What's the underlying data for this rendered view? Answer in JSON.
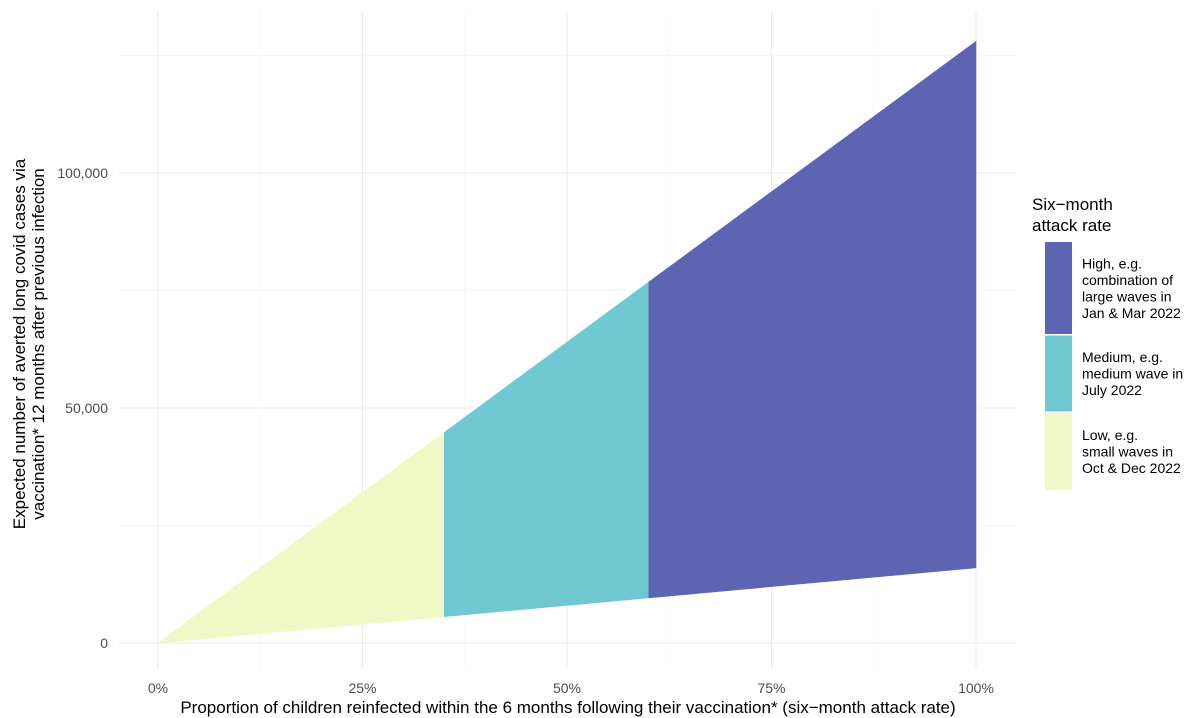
{
  "chart_data": {
    "type": "area",
    "xlabel": "Proportion of children reinfected within the 6 months following their vaccination* (six−month attack rate)",
    "ylabel_lines": [
      "Expected number of averted long covid cases via",
      "vaccination* 12 months after previous infection"
    ],
    "xlim": [
      0,
      1
    ],
    "ylim": [
      0,
      128000
    ],
    "x_ticks": [
      {
        "value": 0,
        "label": "0%"
      },
      {
        "value": 0.25,
        "label": "25%"
      },
      {
        "value": 0.5,
        "label": "50%"
      },
      {
        "value": 0.75,
        "label": "75%"
      },
      {
        "value": 1,
        "label": "100%"
      }
    ],
    "y_ticks": [
      {
        "value": 0,
        "label": "0"
      },
      {
        "value": 50000,
        "label": "50,000"
      },
      {
        "value": 100000,
        "label": "100,000"
      }
    ],
    "grid": true,
    "legend": {
      "title_lines": [
        "Six−month",
        "attack rate"
      ],
      "position": "right"
    },
    "bands": [
      {
        "name_lines": [
          "Low, e.g.",
          "small waves in",
          "Oct & Dec 2022"
        ],
        "color": "#f0f8c5",
        "x": [
          0,
          0.35
        ],
        "upper": [
          0,
          44800
        ],
        "lower": [
          0,
          5600
        ]
      },
      {
        "name_lines": [
          "Medium, e.g.",
          "medium wave in",
          "July 2022"
        ],
        "color": "#70c8d2",
        "x": [
          0.35,
          0.6
        ],
        "upper": [
          44800,
          76800
        ],
        "lower": [
          5600,
          9600
        ]
      },
      {
        "name_lines": [
          "High, e.g.",
          "combination of",
          "large waves in",
          "Jan & Mar 2022"
        ],
        "color": "#5d65b2",
        "x": [
          0.6,
          1.0
        ],
        "upper": [
          76800,
          128000
        ],
        "lower": [
          9600,
          16000
        ]
      }
    ]
  }
}
